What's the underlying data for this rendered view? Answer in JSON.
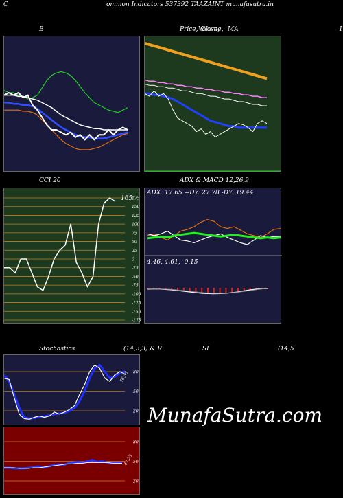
{
  "header": {
    "left_letter": "C",
    "title": "ommon  Indicators 537392  TAAZAINT munafasutra.in"
  },
  "panels": {
    "bollinger": {
      "label": "B"
    },
    "price_ma": {
      "label1": "Price,",
      "label2": "Volume,",
      "label3": "MA",
      "overlap": "Close,"
    },
    "right_edge": {
      "label": "I"
    },
    "cci": {
      "label": "CCI 20",
      "value": "165",
      "ticks": [
        "175",
        "150",
        "125",
        "100",
        "75",
        "50",
        "25",
        "0",
        "-25",
        "-50",
        "-75",
        "-100",
        "-125",
        "-150",
        "-175"
      ]
    },
    "adx": {
      "label": "ADX  & MACD 12,26,9",
      "readout": "ADX: 17.65 +DY: 27.78 -DY: 19.44",
      "macd_readout": "4.46,  4.61,  -0.15"
    },
    "stoch": {
      "label1": "Stochastics",
      "label2": "(14,3,3) & R",
      "label3": "SI",
      "label4": "(14,5",
      "ticks": [
        "80",
        "50",
        "20"
      ],
      "value": "76.36"
    },
    "rsi": {
      "ticks": [
        "80",
        "50",
        "20"
      ],
      "value": "47.25"
    }
  },
  "watermark": "MunafaSutra.com",
  "colors": {
    "navy": "#1a1a3c",
    "green_bg": "#1e3a1e",
    "dark_red": "#7a0000",
    "orange": "#f0a020",
    "blue": "#1f3cff"
  },
  "chart_data": [
    {
      "type": "line",
      "title": "B",
      "series": [
        {
          "values": [
            62,
            60,
            60,
            58,
            57,
            55,
            56,
            58,
            64,
            70,
            74,
            76,
            77,
            76,
            74,
            70,
            65,
            60,
            56,
            52,
            50,
            48,
            46,
            45,
            44,
            46,
            48
          ]
        },
        {
          "values": [
            58,
            58,
            58,
            57,
            57,
            56,
            55,
            54,
            52,
            50,
            48,
            45,
            42,
            40,
            38,
            36,
            34,
            33,
            32,
            31,
            31,
            30,
            30,
            30,
            30,
            30,
            30
          ]
        },
        {
          "values": [
            52,
            52,
            51,
            51,
            50,
            50,
            49,
            47,
            44,
            41,
            38,
            35,
            32,
            30,
            28,
            26,
            25,
            24,
            24,
            23,
            23,
            23,
            24,
            25,
            26,
            27,
            28
          ]
        },
        {
          "values": [
            46,
            46,
            46,
            46,
            45,
            45,
            44,
            42,
            38,
            34,
            30,
            26,
            22,
            19,
            17,
            15,
            14,
            14,
            14,
            15,
            16,
            18,
            20,
            22,
            24,
            26,
            27
          ]
        },
        {
          "values": [
            58,
            60,
            58,
            60,
            56,
            58,
            50,
            46,
            40,
            34,
            30,
            30,
            28,
            26,
            28,
            24,
            26,
            22,
            26,
            22,
            26,
            26,
            30,
            26,
            30,
            32,
            30
          ]
        }
      ]
    },
    {
      "type": "line",
      "title": "Price, Volume, MA",
      "series": [
        {
          "values": [
            95,
            94,
            93,
            92,
            91,
            90,
            89,
            88,
            87,
            86,
            85,
            84,
            83,
            82,
            81,
            80,
            79,
            78,
            77,
            76,
            75,
            74,
            73,
            72,
            71,
            70,
            69
          ]
        },
        {
          "values": [
            68,
            67,
            67,
            66,
            66,
            65,
            65,
            64,
            64,
            63,
            63,
            62,
            62,
            61,
            61,
            60,
            60,
            59,
            59,
            58,
            58,
            57,
            57,
            56,
            56,
            55,
            55
          ]
        },
        {
          "values": [
            65,
            64,
            64,
            63,
            63,
            62,
            62,
            61,
            60,
            60,
            59,
            58,
            58,
            57,
            56,
            56,
            55,
            54,
            54,
            53,
            52,
            52,
            51,
            50,
            50,
            49,
            49
          ]
        },
        {
          "values": [
            58,
            58,
            57,
            57,
            56,
            55,
            54,
            52,
            50,
            48,
            46,
            44,
            42,
            40,
            38,
            37,
            36,
            35,
            34,
            34,
            33,
            33,
            33,
            33,
            33,
            33,
            33
          ]
        },
        {
          "values": [
            58,
            56,
            60,
            56,
            58,
            54,
            46,
            40,
            38,
            36,
            34,
            30,
            32,
            28,
            30,
            26,
            28,
            30,
            32,
            34,
            36,
            35,
            33,
            30,
            36,
            38,
            36
          ]
        }
      ]
    },
    {
      "type": "line",
      "title": "CCI 20",
      "ylim": [
        -175,
        175
      ],
      "series": [
        {
          "values": [
            -25,
            -25,
            -40,
            0,
            0,
            -40,
            -80,
            -90,
            -50,
            0,
            25,
            40,
            100,
            -10,
            -40,
            -80,
            -50,
            100,
            160,
            175,
            165
          ]
        }
      ]
    },
    {
      "type": "line",
      "title": "ADX & MACD 12,26,9",
      "series": [
        {
          "values": [
            17,
            18,
            19,
            18,
            20,
            21,
            22,
            23,
            22,
            21,
            20,
            19,
            20,
            21,
            20,
            19,
            18,
            17,
            18,
            17,
            18
          ]
        },
        {
          "values": [
            20,
            22,
            18,
            15,
            20,
            25,
            27,
            30,
            35,
            38,
            36,
            30,
            28,
            30,
            26,
            22,
            20,
            18,
            22,
            27,
            28
          ]
        },
        {
          "values": [
            22,
            20,
            22,
            25,
            20,
            15,
            14,
            12,
            15,
            18,
            20,
            22,
            18,
            15,
            12,
            10,
            15,
            20,
            18,
            19,
            19
          ]
        },
        {
          "values": [
            4.0,
            4.2,
            4.1,
            3.8,
            3.5,
            3.0,
            2.5,
            2.0,
            1.5,
            1.0,
            0.8,
            0.7,
            0.8,
            1.0,
            1.5,
            2.0,
            2.8,
            3.5,
            4.0,
            4.3,
            4.46
          ]
        },
        {
          "values": [
            4.2,
            4.2,
            4.2,
            4.0,
            3.8,
            3.4,
            3.0,
            2.5,
            2.0,
            1.6,
            1.2,
            1.0,
            1.0,
            1.1,
            1.4,
            1.8,
            2.4,
            3.0,
            3.6,
            4.2,
            4.61
          ]
        }
      ]
    },
    {
      "type": "line",
      "title": "Stochastics (14,3,3)",
      "ylim": [
        0,
        100
      ],
      "series": [
        {
          "values": [
            70,
            68,
            40,
            15,
            8,
            7,
            10,
            12,
            10,
            12,
            18,
            15,
            18,
            22,
            28,
            45,
            60,
            80,
            90,
            85,
            70,
            65,
            75,
            80,
            76.36
          ]
        },
        {
          "values": [
            75,
            65,
            45,
            25,
            10,
            8,
            9,
            11,
            11,
            13,
            15,
            16,
            17,
            20,
            24,
            35,
            50,
            70,
            85,
            90,
            80,
            70,
            72,
            78,
            80
          ]
        }
      ]
    },
    {
      "type": "line",
      "title": "RSI",
      "ylim": [
        0,
        100
      ],
      "series": [
        {
          "values": [
            40,
            40,
            39,
            39,
            39,
            40,
            41,
            42,
            40,
            42,
            44,
            45,
            44,
            47,
            48,
            49,
            48,
            50,
            52,
            49,
            50,
            48,
            47,
            48,
            47.25
          ]
        },
        {
          "values": [
            40,
            40,
            40,
            39,
            39,
            39,
            40,
            40,
            41,
            42,
            43,
            44,
            45,
            46,
            46,
            47,
            47,
            48,
            48,
            48,
            48,
            48,
            47,
            47,
            47
          ]
        }
      ]
    }
  ]
}
